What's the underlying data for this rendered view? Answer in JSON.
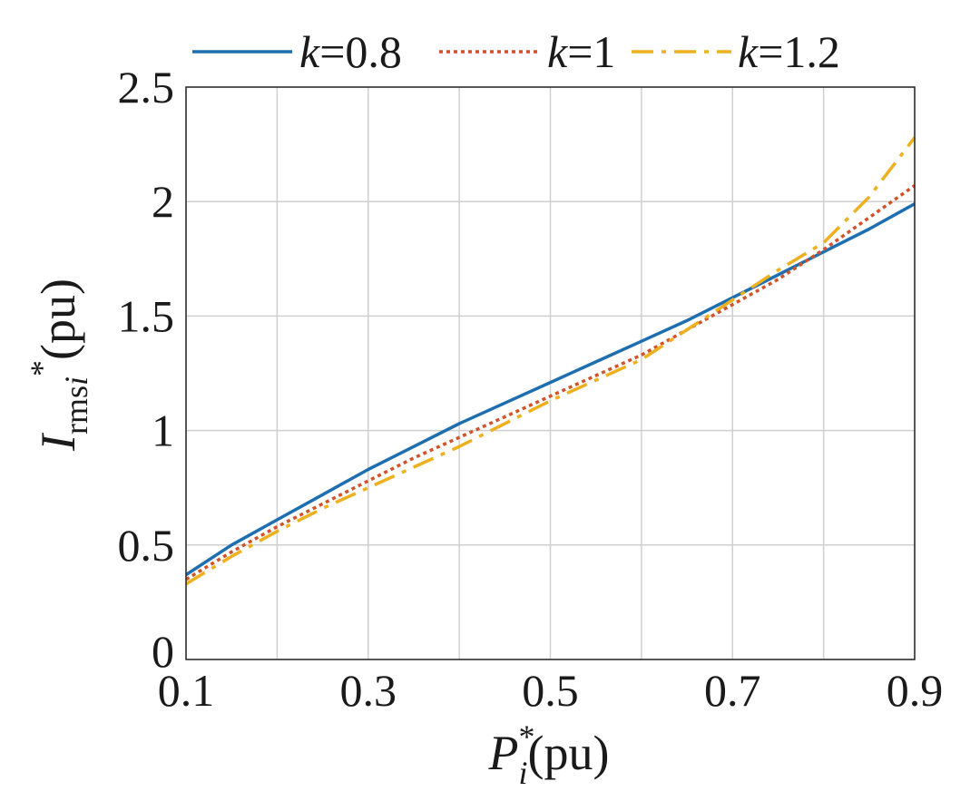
{
  "chart_data": {
    "type": "line",
    "xlim": [
      0.1,
      0.9
    ],
    "ylim": [
      0,
      2.5
    ],
    "x_ticks": [
      0.1,
      0.3,
      0.5,
      0.7,
      0.9
    ],
    "x_tick_labels": [
      "0.1",
      "0.3",
      "0.5",
      "0.7",
      "0.9"
    ],
    "x_grid": [
      0.1,
      0.2,
      0.3,
      0.4,
      0.5,
      0.6,
      0.7,
      0.8,
      0.9
    ],
    "y_ticks": [
      0,
      0.5,
      1,
      1.5,
      2,
      2.5
    ],
    "y_tick_labels": [
      "0",
      "0.5",
      "1",
      "1.5",
      "2",
      "2.5"
    ],
    "grid": true,
    "legend_position": "top",
    "xlabel": {
      "main": "P",
      "sup": "*",
      "sub": "i",
      "unit": "(pu)"
    },
    "ylabel": {
      "main": "I",
      "sub_roman": "rms",
      "sub_italic": "i",
      "sup": "*",
      "unit": "(pu)"
    },
    "series": [
      {
        "legend_var": "k",
        "legend_value": "=0.8",
        "color": "#1f6fb0",
        "dash": "solid",
        "x": [
          0.1,
          0.15,
          0.2,
          0.25,
          0.3,
          0.35,
          0.4,
          0.45,
          0.5,
          0.55,
          0.6,
          0.65,
          0.7,
          0.75,
          0.8,
          0.85,
          0.9
        ],
        "y": [
          0.37,
          0.5,
          0.61,
          0.72,
          0.83,
          0.93,
          1.03,
          1.12,
          1.21,
          1.3,
          1.39,
          1.48,
          1.58,
          1.68,
          1.78,
          1.88,
          1.99
        ]
      },
      {
        "legend_var": "k",
        "legend_value": "=1",
        "color": "#d1532a",
        "dash": "dotted",
        "x": [
          0.1,
          0.15,
          0.2,
          0.25,
          0.3,
          0.35,
          0.4,
          0.45,
          0.5,
          0.55,
          0.6,
          0.65,
          0.7,
          0.75,
          0.8,
          0.85,
          0.9
        ],
        "y": [
          0.35,
          0.47,
          0.58,
          0.68,
          0.78,
          0.88,
          0.97,
          1.06,
          1.15,
          1.24,
          1.33,
          1.44,
          1.55,
          1.66,
          1.79,
          1.93,
          2.07
        ]
      },
      {
        "legend_var": "k",
        "legend_value": "=1.2",
        "color": "#edb120",
        "dash": "dashdot",
        "x": [
          0.1,
          0.15,
          0.2,
          0.25,
          0.3,
          0.35,
          0.4,
          0.45,
          0.5,
          0.55,
          0.6,
          0.65,
          0.7,
          0.75,
          0.8,
          0.85,
          0.9
        ],
        "y": [
          0.33,
          0.45,
          0.56,
          0.66,
          0.75,
          0.84,
          0.93,
          1.03,
          1.13,
          1.22,
          1.31,
          1.44,
          1.57,
          1.7,
          1.82,
          2.02,
          2.28
        ]
      }
    ]
  }
}
